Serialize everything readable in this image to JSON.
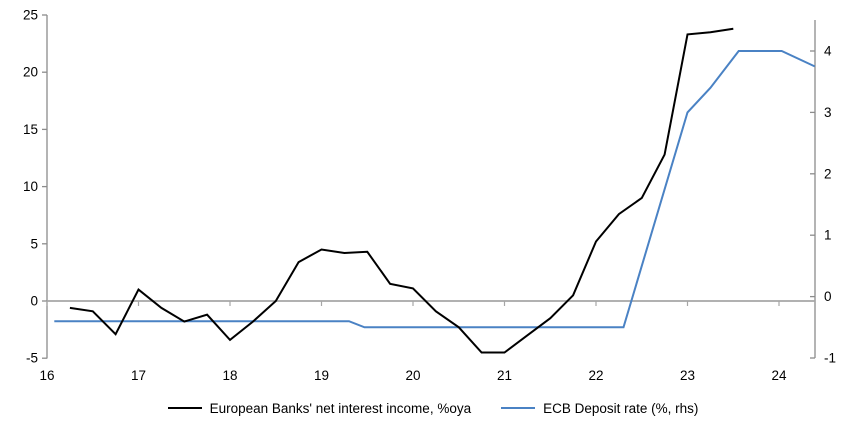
{
  "chart_data": {
    "type": "line",
    "title": "",
    "x_axis": {
      "ticks": [
        16,
        17,
        18,
        19,
        20,
        21,
        22,
        23,
        24
      ],
      "range": [
        16,
        24.39
      ],
      "label": ""
    },
    "left_axis": {
      "ticks": [
        -5,
        0,
        5,
        10,
        15,
        20,
        25
      ],
      "range": [
        -5,
        25
      ],
      "label": ""
    },
    "right_axis": {
      "ticks": [
        -1,
        0,
        1,
        2,
        3,
        4
      ],
      "range": [
        -1,
        4
      ],
      "label": ""
    },
    "grid": "off",
    "legend_position": "bottom",
    "series": [
      {
        "name": "European Banks' net interest income, %oya",
        "axis": "left",
        "color": "#000000",
        "points": [
          [
            16.25,
            -0.6
          ],
          [
            16.5,
            -0.9
          ],
          [
            16.75,
            -2.9
          ],
          [
            17.0,
            1.0
          ],
          [
            17.25,
            -0.6
          ],
          [
            17.5,
            -1.8
          ],
          [
            17.75,
            -1.2
          ],
          [
            18.0,
            -3.4
          ],
          [
            18.25,
            -1.8
          ],
          [
            18.5,
            0.0
          ],
          [
            18.75,
            3.4
          ],
          [
            19.0,
            4.5
          ],
          [
            19.25,
            4.2
          ],
          [
            19.5,
            4.3
          ],
          [
            19.75,
            1.5
          ],
          [
            20.0,
            1.1
          ],
          [
            20.25,
            -0.9
          ],
          [
            20.5,
            -2.3
          ],
          [
            20.75,
            -4.5
          ],
          [
            21.0,
            -4.5
          ],
          [
            21.25,
            -3.0
          ],
          [
            21.5,
            -1.5
          ],
          [
            21.75,
            0.5
          ],
          [
            22.0,
            5.2
          ],
          [
            22.25,
            7.6
          ],
          [
            22.5,
            9.0
          ],
          [
            22.75,
            12.8
          ],
          [
            23.0,
            23.3
          ],
          [
            23.25,
            23.5
          ],
          [
            23.5,
            23.8
          ]
        ]
      },
      {
        "name": "ECB Deposit rate (%, rhs)",
        "axis": "right",
        "color": "#4a82c4",
        "points": [
          [
            16.08,
            -0.4
          ],
          [
            19.3,
            -0.4
          ],
          [
            19.47,
            -0.5
          ],
          [
            22.3,
            -0.5
          ],
          [
            23.0,
            3.0
          ],
          [
            23.25,
            3.4
          ],
          [
            23.56,
            4.0
          ],
          [
            24.03,
            4.0
          ],
          [
            24.39,
            3.75
          ]
        ]
      }
    ],
    "colors": {
      "axis": "#8c8c8c",
      "zero_line": "#a6a6a6",
      "text": "#000000"
    }
  }
}
